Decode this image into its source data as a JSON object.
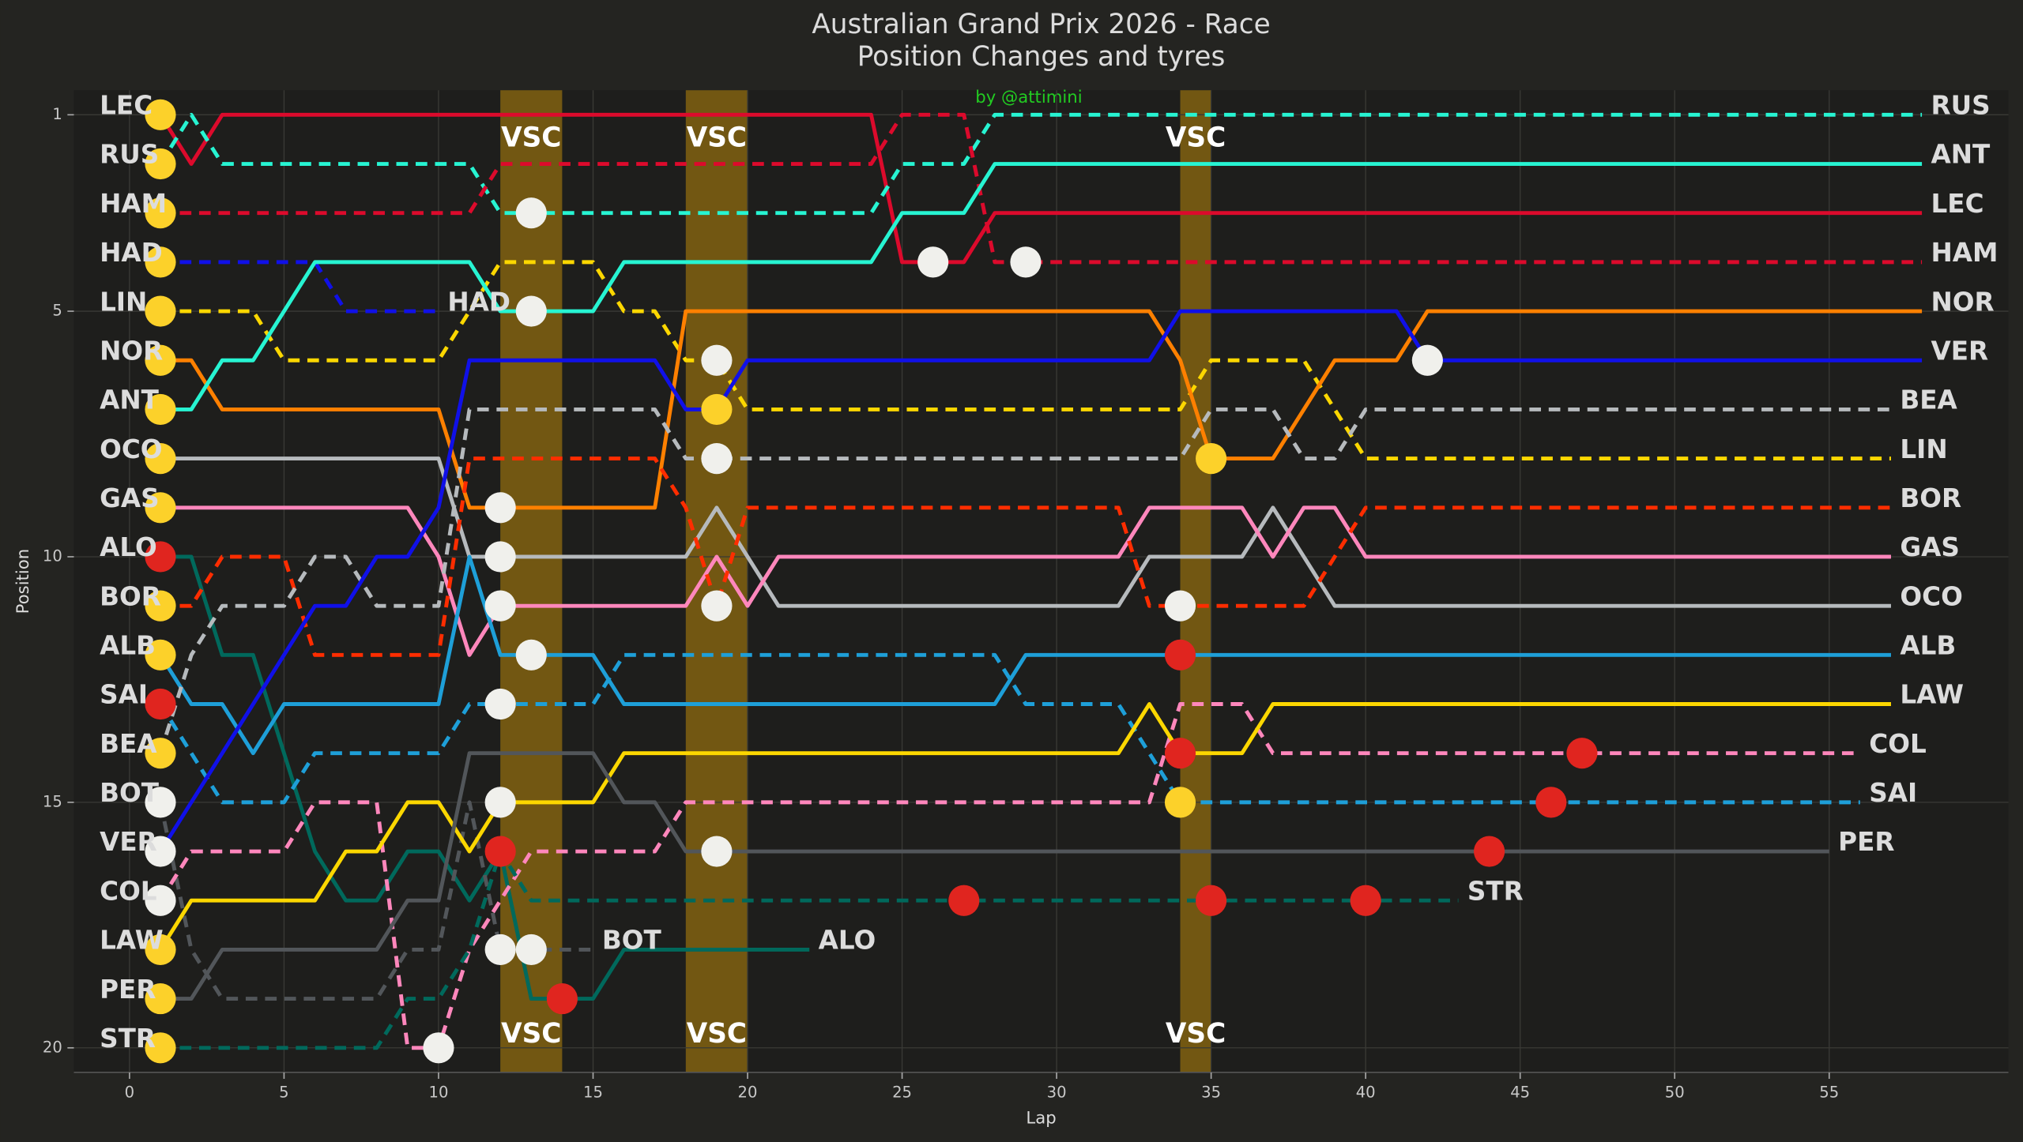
{
  "chart_data": {
    "type": "line",
    "title": "Australian Grand Prix 2026 - Race",
    "subtitle": "Position Changes and tyres",
    "credit": "by @attimini",
    "x_label": "Lap",
    "y_label": "Position",
    "xlim": [
      -1.8,
      60.8
    ],
    "ylim": [
      20.5,
      0.5
    ],
    "xticks": [
      0,
      5,
      10,
      15,
      20,
      25,
      30,
      35,
      40,
      45,
      50,
      55
    ],
    "yticks": [
      1,
      5,
      10,
      15,
      20
    ],
    "grid": true,
    "vsc_color": "#b8860b",
    "vsc_periods": [
      {
        "start": 12,
        "end": 14,
        "label": "VSC"
      },
      {
        "start": 18,
        "end": 20,
        "label": "VSC"
      },
      {
        "start": 34,
        "end": 35,
        "label": "VSC"
      }
    ],
    "series": [
      {
        "name": "LEC",
        "color": "#dc0a2c",
        "dashed": false,
        "x": [
          1,
          2,
          3,
          24,
          25,
          27,
          28,
          58
        ],
        "values": [
          1,
          2,
          1,
          1,
          4,
          4,
          3,
          3
        ]
      },
      {
        "name": "RUS",
        "color": "#27f4d2",
        "dashed": true,
        "x": [
          1,
          2,
          3,
          11,
          12,
          24,
          25,
          27,
          28,
          58
        ],
        "values": [
          2,
          1,
          2,
          2,
          3,
          3,
          2,
          2,
          1,
          1
        ]
      },
      {
        "name": "HAM",
        "color": "#dc0a2c",
        "dashed": true,
        "x": [
          1,
          11,
          12,
          24,
          25,
          27,
          28,
          58
        ],
        "values": [
          3,
          3,
          2,
          2,
          1,
          1,
          4,
          4
        ]
      },
      {
        "name": "HAD",
        "color": "#1010e8",
        "dashed": true,
        "x": [
          1,
          6,
          7,
          10
        ],
        "values": [
          4,
          4,
          5,
          5
        ]
      },
      {
        "name": "LIN",
        "color": "#fcd700",
        "dashed": true,
        "x": [
          1,
          4,
          5,
          10,
          11,
          12,
          15,
          16,
          17,
          18,
          19,
          20,
          34,
          35,
          38,
          39,
          40,
          57
        ],
        "values": [
          5,
          5,
          6,
          6,
          5,
          4,
          4,
          5,
          5,
          6,
          6,
          7,
          7,
          6,
          6,
          7,
          8,
          8
        ]
      },
      {
        "name": "NOR",
        "color": "#ff8000",
        "dashed": false,
        "x": [
          1,
          2,
          3,
          10,
          11,
          17,
          18,
          33,
          34,
          35,
          37,
          38,
          39,
          41,
          42,
          58
        ],
        "values": [
          6,
          6,
          7,
          7,
          9,
          9,
          5,
          5,
          6,
          8,
          8,
          7,
          6,
          6,
          5,
          5
        ]
      },
      {
        "name": "ANT",
        "color": "#27f4d2",
        "dashed": false,
        "x": [
          1,
          2,
          3,
          4,
          5,
          6,
          11,
          12,
          15,
          16,
          24,
          25,
          27,
          28,
          58
        ],
        "values": [
          7,
          7,
          6,
          6,
          5,
          4,
          4,
          5,
          5,
          4,
          4,
          3,
          3,
          2,
          2
        ]
      },
      {
        "name": "OCO",
        "color": "#b6babd",
        "dashed": false,
        "x": [
          1,
          10,
          11,
          18,
          19,
          20,
          21,
          32,
          33,
          36,
          37,
          38,
          39,
          57
        ],
        "values": [
          8,
          8,
          10,
          10,
          9,
          10,
          11,
          11,
          10,
          10,
          9,
          10,
          11,
          11
        ]
      },
      {
        "name": "GAS",
        "color": "#ff87bc",
        "dashed": false,
        "x": [
          1,
          9,
          10,
          11,
          12,
          18,
          19,
          20,
          21,
          32,
          33,
          36,
          37,
          38,
          39,
          40,
          57
        ],
        "values": [
          9,
          9,
          10,
          12,
          11,
          11,
          10,
          11,
          10,
          10,
          9,
          9,
          10,
          9,
          9,
          10,
          10
        ]
      },
      {
        "name": "ALO",
        "color": "#00695c",
        "dashed": false,
        "x": [
          1,
          2,
          3,
          4,
          5,
          6,
          7,
          8,
          9,
          10,
          11,
          12,
          13,
          15,
          16,
          22
        ],
        "values": [
          10,
          10,
          12,
          12,
          14,
          16,
          17,
          17,
          16,
          16,
          17,
          16,
          19,
          19,
          18,
          18
        ]
      },
      {
        "name": "BOR",
        "color": "#ff2d00",
        "dashed": true,
        "x": [
          1,
          2,
          3,
          5,
          6,
          10,
          11,
          17,
          18,
          19,
          20,
          32,
          33,
          38,
          39,
          40,
          57
        ],
        "values": [
          11,
          11,
          10,
          10,
          12,
          12,
          8,
          8,
          9,
          11,
          9,
          9,
          11,
          11,
          10,
          9,
          9
        ]
      },
      {
        "name": "ALB",
        "color": "#1e9fd8",
        "dashed": false,
        "x": [
          1,
          2,
          3,
          4,
          5,
          10,
          11,
          12,
          15,
          16,
          28,
          29,
          57
        ],
        "values": [
          12,
          13,
          13,
          14,
          13,
          13,
          10,
          12,
          12,
          13,
          13,
          12,
          12
        ]
      },
      {
        "name": "SAI",
        "color": "#1e9fd8",
        "dashed": true,
        "x": [
          1,
          2,
          3,
          5,
          6,
          10,
          11,
          15,
          16,
          28,
          29,
          32,
          33,
          34,
          56
        ],
        "values": [
          13,
          14,
          15,
          15,
          14,
          14,
          13,
          13,
          12,
          12,
          13,
          13,
          14,
          15,
          15
        ]
      },
      {
        "name": "BEA",
        "color": "#b6babd",
        "dashed": true,
        "x": [
          1,
          2,
          3,
          5,
          6,
          7,
          8,
          10,
          11,
          17,
          18,
          34,
          35,
          37,
          38,
          39,
          40,
          57
        ],
        "values": [
          14,
          12,
          11,
          11,
          10,
          10,
          11,
          11,
          7,
          7,
          8,
          8,
          7,
          7,
          8,
          8,
          7,
          7
        ]
      },
      {
        "name": "BOT",
        "color": "#52565a",
        "dashed": true,
        "x": [
          1,
          2,
          3,
          8,
          9,
          10,
          11,
          12,
          15
        ],
        "values": [
          15,
          18,
          19,
          19,
          18,
          18,
          15,
          18,
          18
        ]
      },
      {
        "name": "VER",
        "color": "#1010e8",
        "dashed": false,
        "x": [
          1,
          2,
          3,
          4,
          5,
          6,
          7,
          8,
          9,
          10,
          11,
          17,
          18,
          19,
          20,
          33,
          34,
          41,
          42,
          58
        ],
        "values": [
          16,
          15,
          14,
          13,
          12,
          11,
          11,
          10,
          10,
          9,
          6,
          6,
          7,
          7,
          6,
          6,
          5,
          5,
          6,
          6
        ]
      },
      {
        "name": "COL",
        "color": "#ff87bc",
        "dashed": true,
        "x": [
          1,
          2,
          5,
          6,
          8,
          9,
          10,
          11,
          12,
          13,
          17,
          18,
          33,
          34,
          36,
          37,
          56
        ],
        "values": [
          17,
          16,
          16,
          15,
          15,
          20,
          20,
          18,
          17,
          16,
          16,
          15,
          15,
          13,
          13,
          14,
          14
        ]
      },
      {
        "name": "LAW",
        "color": "#fcd700",
        "dashed": false,
        "x": [
          1,
          2,
          6,
          7,
          8,
          9,
          10,
          11,
          12,
          15,
          16,
          32,
          33,
          34,
          36,
          37,
          57
        ],
        "values": [
          18,
          17,
          17,
          16,
          16,
          15,
          15,
          16,
          15,
          15,
          14,
          14,
          13,
          14,
          14,
          13,
          13
        ]
      },
      {
        "name": "PER",
        "color": "#52565a",
        "dashed": false,
        "x": [
          1,
          2,
          3,
          8,
          9,
          10,
          11,
          15,
          16,
          17,
          18,
          55
        ],
        "values": [
          19,
          19,
          18,
          18,
          17,
          17,
          14,
          14,
          15,
          15,
          16,
          16
        ]
      },
      {
        "name": "STR",
        "color": "#00695c",
        "dashed": true,
        "x": [
          1,
          8,
          9,
          10,
          11,
          12,
          13,
          43
        ],
        "values": [
          20,
          20,
          19,
          19,
          18,
          16,
          17,
          17
        ]
      }
    ],
    "tyre_markers": {
      "x": [
        1,
        1,
        1,
        1,
        1,
        1,
        1,
        1,
        1,
        1,
        1,
        1,
        1,
        1,
        1,
        1,
        1,
        1,
        1,
        1,
        10,
        12,
        12,
        12,
        12,
        12,
        12,
        12,
        13,
        13,
        13,
        13,
        14,
        19,
        19,
        19,
        19,
        19,
        26,
        27,
        29,
        34,
        34,
        34,
        34,
        35,
        35,
        40,
        42,
        44,
        46,
        47
      ],
      "y": [
        1,
        2,
        3,
        4,
        5,
        6,
        7,
        8,
        9,
        10,
        11,
        12,
        13,
        14,
        15,
        16,
        17,
        18,
        19,
        20,
        20,
        9,
        10,
        11,
        13,
        15,
        16,
        18,
        3,
        5,
        12,
        18,
        19,
        6,
        7,
        8,
        11,
        16,
        4,
        17,
        4,
        11,
        12,
        14,
        15,
        8,
        17,
        17,
        6,
        16,
        15,
        14
      ],
      "colors": [
        "#fcd12a",
        "#fcd12a",
        "#fcd12a",
        "#fcd12a",
        "#fcd12a",
        "#fcd12a",
        "#fcd12a",
        "#fcd12a",
        "#fcd12a",
        "#e0251f",
        "#fcd12a",
        "#fcd12a",
        "#e0251f",
        "#fcd12a",
        "#f0f0ec",
        "#f0f0ec",
        "#f0f0ec",
        "#fcd12a",
        "#fcd12a",
        "#fcd12a",
        "#f0f0ec",
        "#f0f0ec",
        "#f0f0ec",
        "#f0f0ec",
        "#f0f0ec",
        "#f0f0ec",
        "#e0251f",
        "#f0f0ec",
        "#f0f0ec",
        "#f0f0ec",
        "#f0f0ec",
        "#f0f0ec",
        "#e0251f",
        "#f0f0ec",
        "#fcd12a",
        "#f0f0ec",
        "#f0f0ec",
        "#f0f0ec",
        "#f0f0ec",
        "#e0251f",
        "#f0f0ec",
        "#f0f0ec",
        "#e0251f",
        "#e0251f",
        "#fcd12a",
        "#fcd12a",
        "#e0251f",
        "#e0251f",
        "#f0f0ec",
        "#e0251f",
        "#e0251f",
        "#e0251f"
      ]
    }
  }
}
